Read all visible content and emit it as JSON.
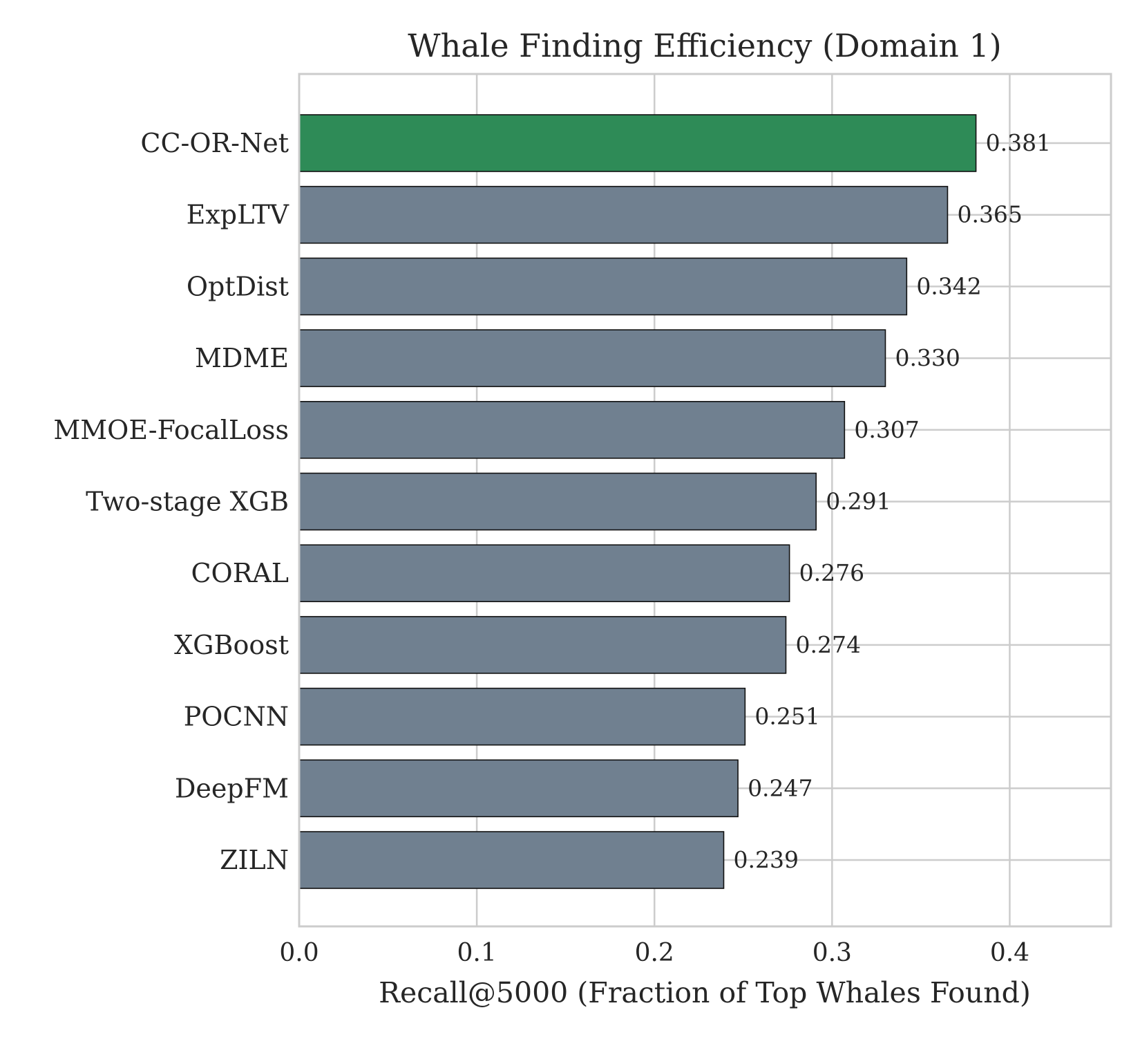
{
  "chart_data": {
    "type": "bar",
    "orientation": "horizontal",
    "title": "Whale Finding Efficiency (Domain 1)",
    "xlabel": "Recall@5000 (Fraction of Top Whales Found)",
    "ylabel": "",
    "xlim": [
      0,
      0.457
    ],
    "xticks": [
      0.0,
      0.1,
      0.2,
      0.3,
      0.4
    ],
    "xtick_labels": [
      "0.0",
      "0.1",
      "0.2",
      "0.3",
      "0.4"
    ],
    "grid": true,
    "categories": [
      "CC-OR-Net",
      "ExpLTV",
      "OptDist",
      "MDME",
      "MMOE-FocalLoss",
      "Two-stage XGB",
      "CORAL",
      "XGBoost",
      "POCNN",
      "DeepFM",
      "ZILN"
    ],
    "values": [
      0.381,
      0.365,
      0.342,
      0.33,
      0.307,
      0.291,
      0.276,
      0.274,
      0.251,
      0.247,
      0.239
    ],
    "value_labels": [
      "0.381",
      "0.365",
      "0.342",
      "0.330",
      "0.307",
      "0.291",
      "0.276",
      "0.274",
      "0.251",
      "0.247",
      "0.239"
    ],
    "colors": {
      "highlight": "#2e8b57",
      "default": "#708090",
      "edge": "#111111",
      "grid": "#cccccc",
      "text": "#262626"
    },
    "highlight_category": "CC-OR-Net"
  }
}
